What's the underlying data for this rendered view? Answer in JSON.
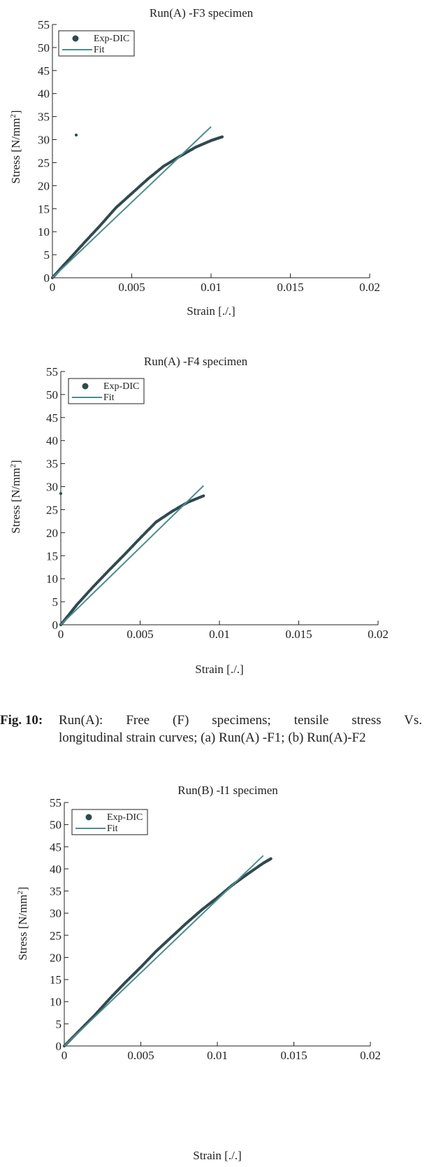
{
  "chart_data": [
    {
      "type": "scatter",
      "title": "Run(A) -F3 specimen",
      "xlabel": "Strain [./.]",
      "ylabel_base": "Stress [N/mm",
      "ylabel_sup": "2",
      "ylabel_end": "]",
      "xlim": [
        0,
        0.02
      ],
      "ylim": [
        0,
        55
      ],
      "xticks": [
        "0",
        "0.005",
        "0.01",
        "0.015",
        "0.02"
      ],
      "yticks": [
        "0",
        "5",
        "10",
        "15",
        "20",
        "25",
        "30",
        "35",
        "40",
        "45",
        "50",
        "55"
      ],
      "legend": {
        "position": "top-left",
        "entries": [
          "Exp-DIC",
          "Fit"
        ]
      },
      "colors": {
        "exp": "#2f4a4e",
        "fit": "#4f8c8f"
      },
      "series": [
        {
          "name": "Exp-DIC",
          "x": [
            0,
            0.0005,
            0.001,
            0.002,
            0.003,
            0.004,
            0.005,
            0.006,
            0.007,
            0.008,
            0.009,
            0.01,
            0.0107
          ],
          "y": [
            0,
            1.9,
            3.8,
            7.6,
            11.3,
            15.2,
            18.3,
            21.4,
            24.2,
            26.3,
            28.3,
            29.8,
            30.6
          ]
        },
        {
          "name": "Exp-DIC outlier",
          "x": [
            0.0015
          ],
          "y": [
            31
          ]
        },
        {
          "name": "Fit",
          "x": [
            0,
            0.01
          ],
          "y": [
            0,
            32.8
          ]
        }
      ]
    },
    {
      "type": "scatter",
      "title": "Run(A) -F4 specimen",
      "xlabel": "Strain [./.]",
      "ylabel_base": "Stress [N/mm",
      "ylabel_sup": "2",
      "ylabel_end": "]",
      "xlim": [
        0,
        0.02
      ],
      "ylim": [
        0,
        55
      ],
      "xticks": [
        "0",
        "0.005",
        "0.01",
        "0.015",
        "0.02"
      ],
      "yticks": [
        "0",
        "5",
        "10",
        "15",
        "20",
        "25",
        "30",
        "35",
        "40",
        "45",
        "50",
        "55"
      ],
      "legend": {
        "position": "top-left",
        "entries": [
          "Exp-DIC",
          "Fit"
        ]
      },
      "colors": {
        "exp": "#2f4a4e",
        "fit": "#4f8c8f"
      },
      "series": [
        {
          "name": "Exp-DIC",
          "x": [
            0,
            0.0005,
            0.001,
            0.002,
            0.003,
            0.004,
            0.005,
            0.006,
            0.007,
            0.008,
            0.009
          ],
          "y": [
            0,
            2.1,
            4.3,
            8.1,
            11.7,
            15.2,
            18.8,
            22.3,
            24.6,
            26.6,
            28.0
          ]
        },
        {
          "name": "Exp-DIC outlier",
          "x": [
            0
          ],
          "y": [
            28.5
          ]
        },
        {
          "name": "Fit",
          "x": [
            0,
            0.009
          ],
          "y": [
            0,
            30.2
          ]
        }
      ]
    },
    {
      "type": "scatter",
      "title": "Run(B) -I1 specimen",
      "xlabel": "Strain [./.]",
      "ylabel_base": "Stress [N/mm",
      "ylabel_sup": "2",
      "ylabel_end": "]",
      "xlim": [
        0,
        0.02
      ],
      "ylim": [
        0,
        55
      ],
      "xticks": [
        "0",
        "0.005",
        "0.01",
        "0.015",
        "0.02"
      ],
      "yticks": [
        "0",
        "5",
        "10",
        "15",
        "20",
        "25",
        "30",
        "35",
        "40",
        "45",
        "50",
        "55"
      ],
      "legend": {
        "position": "top-left",
        "entries": [
          "Exp-DIC",
          "Fit"
        ]
      },
      "colors": {
        "exp": "#2f4a4e",
        "fit": "#4f8c8f"
      },
      "series": [
        {
          "name": "Exp-DIC",
          "x": [
            0,
            0.001,
            0.002,
            0.003,
            0.004,
            0.005,
            0.006,
            0.007,
            0.008,
            0.009,
            0.01,
            0.011,
            0.012,
            0.013,
            0.0135
          ],
          "y": [
            0,
            3.5,
            7.0,
            10.8,
            14.4,
            17.8,
            21.4,
            24.6,
            27.8,
            30.8,
            33.5,
            36.4,
            38.9,
            41.3,
            42.3
          ]
        },
        {
          "name": "Fit",
          "x": [
            0,
            0.013
          ],
          "y": [
            0,
            43.0
          ]
        }
      ]
    }
  ],
  "caption": {
    "fig_label": "Fig. 10:",
    "line1": "Run(A): Free (F) specimens; tensile stress Vs.",
    "line2": "longitudinal strain curves; (a) Run(A) -F1; (b) Run(A)-F2"
  }
}
